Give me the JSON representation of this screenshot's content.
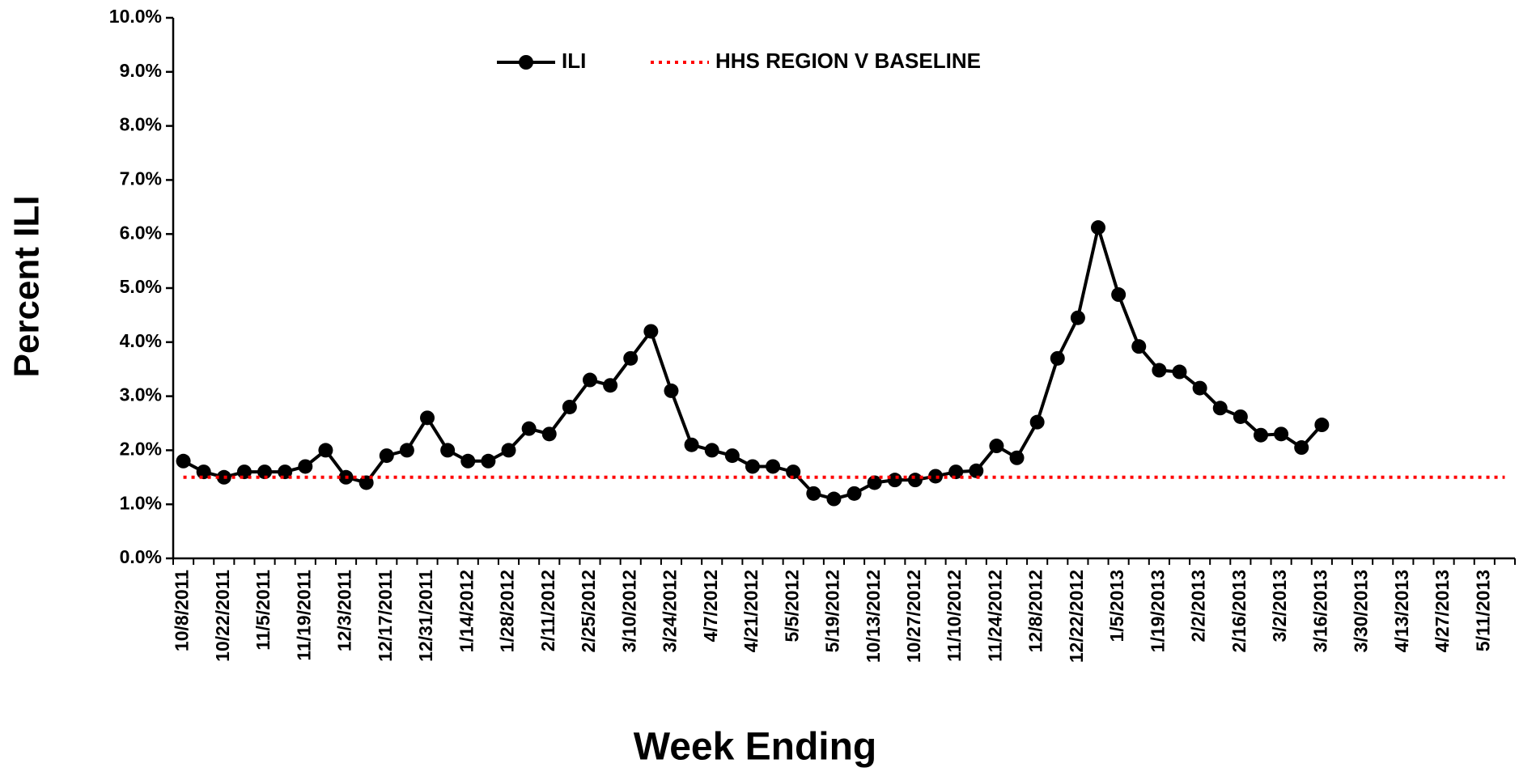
{
  "chart_data": {
    "type": "line",
    "x_label": "Week Ending",
    "y_label": "Percent  ILI",
    "categories": [
      "10/8/2011",
      null,
      "10/22/2011",
      null,
      "11/5/2011",
      null,
      "11/19/2011",
      null,
      "12/3/2011",
      null,
      "12/17/2011",
      null,
      "12/31/2011",
      null,
      "1/14/2012",
      null,
      "1/28/2012",
      null,
      "2/11/2012",
      null,
      "2/25/2012",
      null,
      "3/10/2012",
      null,
      "3/24/2012",
      null,
      "4/7/2012",
      null,
      "4/21/2012",
      null,
      "5/5/2012",
      null,
      "5/19/2012",
      null,
      "10/13/2012",
      null,
      "10/27/2012",
      null,
      "11/10/2012",
      null,
      "11/24/2012",
      null,
      "12/8/2012",
      null,
      "12/22/2012",
      null,
      "1/5/2013",
      null,
      "1/19/2013",
      null,
      "2/2/2013",
      null,
      "2/16/2013",
      null,
      "3/2/2013",
      null,
      "3/16/2013",
      null,
      "3/30/2013",
      null,
      "4/13/2013",
      null,
      "4/27/2013",
      null,
      "5/11/2013",
      null
    ],
    "series": [
      {
        "name": "ILI",
        "color": "#000000",
        "style": "solid-markers",
        "values": [
          1.8,
          1.6,
          1.5,
          1.6,
          1.6,
          1.6,
          1.7,
          2.0,
          1.5,
          1.4,
          1.9,
          2.0,
          2.6,
          2.0,
          1.8,
          1.8,
          2.0,
          2.4,
          2.3,
          2.8,
          3.3,
          3.2,
          3.7,
          4.2,
          3.1,
          2.1,
          2.0,
          1.9,
          1.7,
          1.7,
          1.6,
          1.2,
          1.1,
          1.2,
          1.4,
          1.45,
          1.45,
          1.52,
          1.6,
          1.62,
          2.08,
          1.86,
          2.52,
          3.7,
          4.45,
          6.12,
          4.88,
          3.92,
          3.48,
          3.45,
          3.15,
          2.78,
          2.62,
          2.28,
          2.3,
          2.05,
          2.47,
          null,
          null,
          null,
          null,
          null,
          null,
          null,
          null,
          null
        ]
      },
      {
        "name": "HHS REGION V BASELINE",
        "color": "#ff0000",
        "style": "dotted",
        "values": [
          1.5,
          1.5,
          1.5,
          1.5,
          1.5,
          1.5,
          1.5,
          1.5,
          1.5,
          1.5,
          1.5,
          1.5,
          1.5,
          1.5,
          1.5,
          1.5,
          1.5,
          1.5,
          1.5,
          1.5,
          1.5,
          1.5,
          1.5,
          1.5,
          1.5,
          1.5,
          1.5,
          1.5,
          1.5,
          1.5,
          1.5,
          1.5,
          1.5,
          1.5,
          1.5,
          1.5,
          1.5,
          1.5,
          1.5,
          1.5,
          1.5,
          1.5,
          1.5,
          1.5,
          1.5,
          1.5,
          1.5,
          1.5,
          1.5,
          1.5,
          1.5,
          1.5,
          1.5,
          1.5,
          1.5,
          1.5,
          1.5,
          1.5,
          1.5,
          1.5,
          1.5,
          1.5,
          1.5,
          1.5,
          1.5,
          1.5
        ]
      }
    ],
    "ylim": [
      0,
      10
    ],
    "yticks": [
      {
        "value": 0,
        "label": "0.0%"
      },
      {
        "value": 1,
        "label": "1.0%"
      },
      {
        "value": 2,
        "label": "2.0%"
      },
      {
        "value": 3,
        "label": "3.0%"
      },
      {
        "value": 4,
        "label": "4.0%"
      },
      {
        "value": 5,
        "label": "5.0%"
      },
      {
        "value": 6,
        "label": "6.0%"
      },
      {
        "value": 7,
        "label": "7.0%"
      },
      {
        "value": 8,
        "label": "8.0%"
      },
      {
        "value": 9,
        "label": "9.0%"
      },
      {
        "value": 10,
        "label": "10.0%"
      }
    ],
    "grid": false,
    "legend": "top"
  }
}
